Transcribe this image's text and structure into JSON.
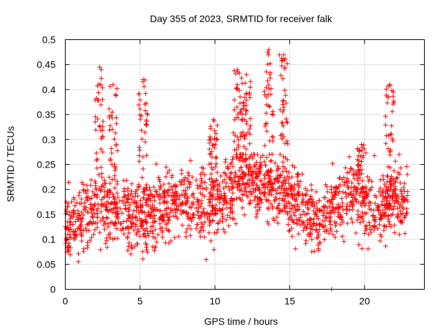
{
  "chart_data": {
    "type": "scatter",
    "title": "Day 355 of 2023, SRMTID for receiver falk",
    "xlabel": "GPS time / hours",
    "ylabel": "SRMTID / TECUs",
    "xlim": [
      0,
      24
    ],
    "ylim": [
      0,
      0.5
    ],
    "x_ticks": [
      0,
      5,
      10,
      15,
      20
    ],
    "y_ticks": [
      0,
      0.05,
      0.1,
      0.15,
      0.2,
      0.25,
      0.3,
      0.35,
      0.4,
      0.45,
      0.5
    ],
    "x_tick_labels": [
      "0",
      "5",
      "10",
      "15",
      "20"
    ],
    "y_tick_labels": [
      "0",
      "0.05",
      "0.1",
      "0.15",
      "0.2",
      "0.25",
      "0.3",
      "0.35",
      "0.4",
      "0.45",
      "0.5"
    ],
    "grid": true,
    "marker": "plus",
    "series_color": "#ff0000",
    "point_time_range": [
      0.0,
      22.9
    ],
    "typical_band": [
      0.08,
      0.25
    ],
    "background_envelope": [
      [
        0.0,
        0.13
      ],
      [
        1.0,
        0.14
      ],
      [
        2.0,
        0.16
      ],
      [
        3.0,
        0.16
      ],
      [
        4.0,
        0.15
      ],
      [
        5.0,
        0.15
      ],
      [
        6.0,
        0.15
      ],
      [
        7.0,
        0.17
      ],
      [
        8.0,
        0.18
      ],
      [
        9.0,
        0.17
      ],
      [
        10.0,
        0.17
      ],
      [
        11.0,
        0.2
      ],
      [
        12.0,
        0.23
      ],
      [
        13.0,
        0.21
      ],
      [
        14.0,
        0.21
      ],
      [
        15.0,
        0.19
      ],
      [
        16.0,
        0.16
      ],
      [
        17.0,
        0.14
      ],
      [
        18.0,
        0.17
      ],
      [
        19.0,
        0.19
      ],
      [
        20.0,
        0.17
      ],
      [
        21.0,
        0.16
      ],
      [
        22.0,
        0.18
      ],
      [
        22.9,
        0.18
      ]
    ],
    "peaks": [
      {
        "x": 2.3,
        "y": 0.445
      },
      {
        "x": 3.2,
        "y": 0.41
      },
      {
        "x": 5.2,
        "y": 0.42
      },
      {
        "x": 9.9,
        "y": 0.34
      },
      {
        "x": 11.5,
        "y": 0.44
      },
      {
        "x": 12.1,
        "y": 0.43
      },
      {
        "x": 13.6,
        "y": 0.48
      },
      {
        "x": 14.6,
        "y": 0.47
      },
      {
        "x": 19.8,
        "y": 0.29
      },
      {
        "x": 21.7,
        "y": 0.41
      }
    ],
    "zero_points": [
      {
        "x": 17.8,
        "y": 0.0
      }
    ],
    "point_density": 1800
  }
}
